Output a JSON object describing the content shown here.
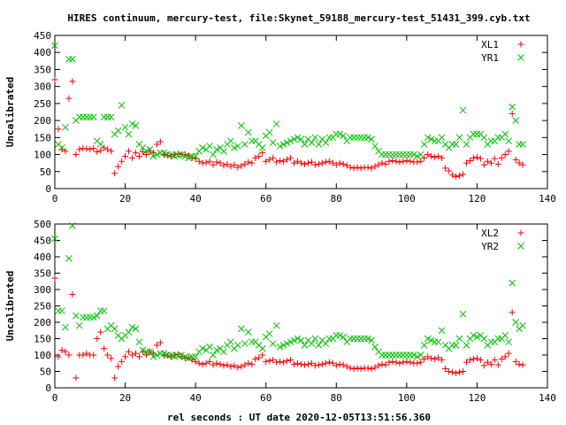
{
  "title": "HIRES continuum, mercury-test, file:Skynet_59188_mercury-test_51431_399.cyb.txt",
  "xlabel": "rel seconds : UT date 2020-12-05T13:51:56.360",
  "colors": {
    "red": "#ff0000",
    "green": "#00c000",
    "axis": "#000000",
    "grid": "#a0a0a0"
  },
  "chart_data": [
    {
      "type": "scatter",
      "ylabel": "Uncalibrated",
      "xlim": [
        0,
        140
      ],
      "ylim": [
        0,
        450
      ],
      "xticks": [
        0,
        20,
        40,
        60,
        80,
        100,
        120,
        140
      ],
      "yticks": [
        0,
        50,
        100,
        150,
        200,
        250,
        300,
        350,
        400,
        450
      ],
      "legend_position": "top-right",
      "series": [
        {
          "name": "XL1",
          "marker": "plus",
          "color": "#ff0000",
          "x": [
            0,
            1,
            2,
            3,
            4,
            5,
            6,
            7,
            8,
            9,
            10,
            11,
            12,
            13,
            14,
            15,
            16,
            17,
            18,
            19,
            20,
            21,
            22,
            23,
            24,
            25,
            26,
            27,
            28,
            29,
            30,
            31,
            32,
            33,
            34,
            35,
            36,
            37,
            38,
            39,
            40,
            41,
            42,
            43,
            44,
            45,
            46,
            47,
            48,
            49,
            50,
            51,
            52,
            53,
            54,
            55,
            56,
            57,
            58,
            59,
            60,
            61,
            62,
            63,
            64,
            65,
            66,
            67,
            68,
            69,
            70,
            71,
            72,
            73,
            74,
            75,
            76,
            77,
            78,
            79,
            80,
            81,
            82,
            83,
            84,
            85,
            86,
            87,
            88,
            89,
            90,
            91,
            92,
            93,
            94,
            95,
            96,
            97,
            98,
            99,
            100,
            101,
            102,
            103,
            104,
            105,
            106,
            107,
            108,
            109,
            110,
            111,
            112,
            113,
            114,
            115,
            116,
            117,
            118,
            119,
            120,
            121,
            122,
            123,
            124,
            125,
            126,
            127,
            128,
            129,
            130,
            131,
            132,
            133
          ],
          "y": [
            320,
            175,
            115,
            110,
            265,
            315,
            100,
            115,
            118,
            117,
            115,
            118,
            108,
            112,
            120,
            115,
            110,
            45,
            65,
            80,
            95,
            110,
            90,
            105,
            95,
            108,
            100,
            110,
            105,
            130,
            138,
            100,
            98,
            95,
            100,
            102,
            100,
            100,
            97,
            90,
            88,
            80,
            75,
            76,
            80,
            70,
            78,
            75,
            68,
            72,
            65,
            70,
            62,
            67,
            72,
            78,
            75,
            90,
            95,
            105,
            80,
            85,
            90,
            78,
            82,
            80,
            85,
            90,
            75,
            80,
            75,
            72,
            75,
            78,
            70,
            72,
            75,
            78,
            80,
            75,
            70,
            75,
            72,
            68,
            62,
            60,
            62,
            60,
            62,
            62,
            60,
            65,
            70,
            75,
            72,
            80,
            82,
            80,
            78,
            80,
            82,
            80,
            78,
            78,
            80,
            90,
            100,
            95,
            92,
            95,
            90,
            60,
            52,
            40,
            35,
            38,
            42,
            75,
            82,
            90,
            92,
            88,
            70,
            80,
            75,
            88,
            72,
            90,
            100,
            110,
            220,
            85,
            75,
            70
          ]
        },
        {
          "name": "YR1",
          "marker": "cross",
          "color": "#00c000",
          "x": [
            0,
            1,
            2,
            3,
            4,
            5,
            6,
            7,
            8,
            9,
            10,
            11,
            12,
            13,
            14,
            15,
            16,
            17,
            18,
            19,
            20,
            21,
            22,
            23,
            24,
            25,
            26,
            27,
            28,
            29,
            30,
            31,
            32,
            33,
            34,
            35,
            36,
            37,
            38,
            39,
            40,
            41,
            42,
            43,
            44,
            45,
            46,
            47,
            48,
            49,
            50,
            51,
            52,
            53,
            54,
            55,
            56,
            57,
            58,
            59,
            60,
            61,
            62,
            63,
            64,
            65,
            66,
            67,
            68,
            69,
            70,
            71,
            72,
            73,
            74,
            75,
            76,
            77,
            78,
            79,
            80,
            81,
            82,
            83,
            84,
            85,
            86,
            87,
            88,
            89,
            90,
            91,
            92,
            93,
            94,
            95,
            96,
            97,
            98,
            99,
            100,
            101,
            102,
            103,
            104,
            105,
            106,
            107,
            108,
            109,
            110,
            111,
            112,
            113,
            114,
            115,
            116,
            117,
            118,
            119,
            120,
            121,
            122,
            123,
            124,
            125,
            126,
            127,
            128,
            129,
            130,
            131,
            132,
            133
          ],
          "y": [
            420,
            130,
            120,
            180,
            380,
            380,
            200,
            210,
            210,
            210,
            210,
            210,
            140,
            130,
            210,
            210,
            210,
            160,
            170,
            245,
            180,
            160,
            190,
            185,
            130,
            120,
            110,
            115,
            95,
            100,
            105,
            105,
            100,
            100,
            95,
            98,
            100,
            95,
            90,
            95,
            95,
            110,
            120,
            115,
            125,
            100,
            115,
            120,
            110,
            130,
            140,
            120,
            125,
            185,
            130,
            165,
            140,
            140,
            130,
            120,
            155,
            165,
            135,
            190,
            125,
            130,
            135,
            140,
            145,
            150,
            145,
            130,
            145,
            135,
            150,
            130,
            145,
            135,
            150,
            150,
            160,
            160,
            155,
            140,
            150,
            150,
            150,
            150,
            150,
            150,
            145,
            125,
            110,
            100,
            100,
            100,
            100,
            100,
            100,
            100,
            100,
            100,
            100,
            95,
            100,
            130,
            150,
            145,
            140,
            140,
            150,
            130,
            120,
            130,
            130,
            150,
            230,
            130,
            150,
            160,
            160,
            160,
            150,
            130,
            140,
            140,
            150,
            150,
            160,
            140,
            240,
            200,
            130,
            130
          ]
        }
      ]
    },
    {
      "type": "scatter",
      "ylabel": "Uncalibrated",
      "xlim": [
        0,
        140
      ],
      "ylim": [
        0,
        500
      ],
      "xticks": [
        0,
        20,
        40,
        60,
        80,
        100,
        120,
        140
      ],
      "yticks": [
        0,
        50,
        100,
        150,
        200,
        250,
        300,
        350,
        400,
        450,
        500
      ],
      "legend_position": "top-right",
      "series": [
        {
          "name": "XL2",
          "marker": "plus",
          "color": "#ff0000",
          "x": [
            0,
            1,
            2,
            3,
            4,
            5,
            6,
            7,
            8,
            9,
            10,
            11,
            12,
            13,
            14,
            15,
            16,
            17,
            18,
            19,
            20,
            21,
            22,
            23,
            24,
            25,
            26,
            27,
            28,
            29,
            30,
            31,
            32,
            33,
            34,
            35,
            36,
            37,
            38,
            39,
            40,
            41,
            42,
            43,
            44,
            45,
            46,
            47,
            48,
            49,
            50,
            51,
            52,
            53,
            54,
            55,
            56,
            57,
            58,
            59,
            60,
            61,
            62,
            63,
            64,
            65,
            66,
            67,
            68,
            69,
            70,
            71,
            72,
            73,
            74,
            75,
            76,
            77,
            78,
            79,
            80,
            81,
            82,
            83,
            84,
            85,
            86,
            87,
            88,
            89,
            90,
            91,
            92,
            93,
            94,
            95,
            96,
            97,
            98,
            99,
            100,
            101,
            102,
            103,
            104,
            105,
            106,
            107,
            108,
            109,
            110,
            111,
            112,
            113,
            114,
            115,
            116,
            117,
            118,
            119,
            120,
            121,
            122,
            123,
            124,
            125,
            126,
            127,
            128,
            129,
            130,
            131,
            132,
            133
          ],
          "y": [
            335,
            95,
            115,
            110,
            100,
            285,
            30,
            100,
            100,
            105,
            100,
            100,
            150,
            170,
            120,
            100,
            90,
            30,
            65,
            80,
            95,
            110,
            100,
            105,
            95,
            110,
            100,
            110,
            105,
            130,
            138,
            100,
            98,
            95,
            100,
            102,
            95,
            90,
            92,
            85,
            80,
            75,
            72,
            75,
            80,
            70,
            75,
            72,
            68,
            70,
            65,
            68,
            62,
            65,
            70,
            75,
            72,
            88,
            92,
            100,
            80,
            82,
            85,
            78,
            80,
            78,
            82,
            85,
            72,
            75,
            72,
            70,
            72,
            75,
            68,
            70,
            72,
            75,
            78,
            75,
            68,
            72,
            70,
            65,
            60,
            58,
            60,
            58,
            60,
            60,
            58,
            62,
            68,
            72,
            70,
            78,
            80,
            78,
            75,
            78,
            80,
            78,
            75,
            75,
            78,
            88,
            95,
            90,
            88,
            92,
            85,
            58,
            50,
            48,
            45,
            48,
            50,
            78,
            85,
            88,
            90,
            85,
            68,
            78,
            72,
            85,
            70,
            88,
            95,
            105,
            230,
            80,
            72,
            70
          ]
        },
        {
          "name": "YR2",
          "marker": "cross",
          "color": "#00c000",
          "x": [
            0,
            1,
            2,
            3,
            4,
            5,
            6,
            7,
            8,
            9,
            10,
            11,
            12,
            13,
            14,
            15,
            16,
            17,
            18,
            19,
            20,
            21,
            22,
            23,
            24,
            25,
            26,
            27,
            28,
            29,
            30,
            31,
            32,
            33,
            34,
            35,
            36,
            37,
            38,
            39,
            40,
            41,
            42,
            43,
            44,
            45,
            46,
            47,
            48,
            49,
            50,
            51,
            52,
            53,
            54,
            55,
            56,
            57,
            58,
            59,
            60,
            61,
            62,
            63,
            64,
            65,
            66,
            67,
            68,
            69,
            70,
            71,
            72,
            73,
            74,
            75,
            76,
            77,
            78,
            79,
            80,
            81,
            82,
            83,
            84,
            85,
            86,
            87,
            88,
            89,
            90,
            91,
            92,
            93,
            94,
            95,
            96,
            97,
            98,
            99,
            100,
            101,
            102,
            103,
            104,
            105,
            106,
            107,
            108,
            109,
            110,
            111,
            112,
            113,
            114,
            115,
            116,
            117,
            118,
            119,
            120,
            121,
            122,
            123,
            124,
            125,
            126,
            127,
            128,
            129,
            130,
            131,
            132,
            133
          ],
          "y": [
            455,
            235,
            235,
            185,
            395,
            495,
            220,
            190,
            215,
            215,
            215,
            215,
            220,
            235,
            235,
            180,
            190,
            180,
            160,
            150,
            160,
            170,
            185,
            180,
            140,
            115,
            110,
            110,
            95,
            100,
            105,
            105,
            100,
            100,
            95,
            98,
            100,
            95,
            90,
            95,
            95,
            110,
            120,
            115,
            125,
            100,
            115,
            120,
            110,
            130,
            140,
            120,
            130,
            180,
            135,
            170,
            140,
            140,
            130,
            120,
            155,
            165,
            135,
            190,
            125,
            130,
            135,
            140,
            145,
            150,
            145,
            130,
            145,
            135,
            150,
            130,
            145,
            135,
            150,
            150,
            160,
            160,
            155,
            140,
            150,
            150,
            150,
            150,
            150,
            150,
            145,
            125,
            110,
            100,
            100,
            100,
            100,
            100,
            100,
            100,
            100,
            100,
            100,
            95,
            100,
            130,
            150,
            145,
            140,
            140,
            175,
            130,
            120,
            130,
            130,
            150,
            225,
            130,
            150,
            160,
            155,
            160,
            150,
            130,
            140,
            140,
            150,
            150,
            160,
            140,
            320,
            200,
            180,
            190
          ]
        }
      ]
    }
  ]
}
